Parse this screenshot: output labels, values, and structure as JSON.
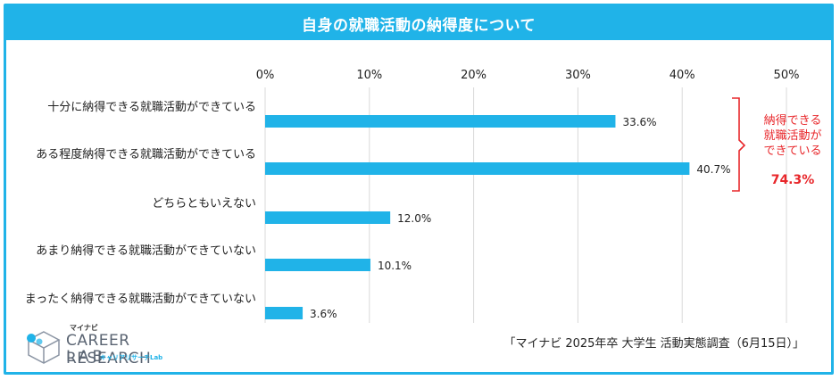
{
  "header": {
    "title": "自身の就職活動の納得度について"
  },
  "chart_data": {
    "type": "bar",
    "orientation": "horizontal",
    "title": "自身の就職活動の納得度について",
    "categories": [
      "十分に納得できる就職活動ができている",
      "ある程度納得できる就職活動ができている",
      "どちらともいえない",
      "あまり納得できる就職活動ができていない",
      "まったく納得できる就職活動ができていない"
    ],
    "values": [
      33.6,
      40.7,
      12.0,
      10.1,
      3.6
    ],
    "value_labels": [
      "33.6%",
      "40.7%",
      "12.0%",
      "10.1%",
      "3.6%"
    ],
    "xlim": [
      0,
      50
    ],
    "ticks": [
      0,
      10,
      20,
      30,
      40,
      50
    ],
    "tick_labels": [
      "0%",
      "10%",
      "20%",
      "30%",
      "40%",
      "50%"
    ],
    "grid": true,
    "bar_color": "#20b3e8",
    "annotation": {
      "text_lines": [
        "納得できる",
        "就職活動が",
        "できている"
      ],
      "total": "74.3%",
      "color": "#e8262a"
    }
  },
  "footer": {
    "source": "「マイナビ 2025年卒 大学生 活動実態調査（6月15日）」",
    "logo_top": "マイナビ",
    "logo_main": "CAREER RESEARCH",
    "logo_lab": "LAB",
    "logo_sub": "キャリアリサーチLab"
  }
}
